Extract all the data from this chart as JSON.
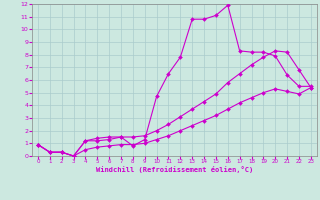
{
  "background_color": "#cce8e0",
  "grid_color": "#aacccc",
  "line_color": "#cc00cc",
  "xlabel": "Windchill (Refroidissement éolien,°C)",
  "xlim": [
    -0.5,
    23.5
  ],
  "ylim": [
    0,
    12
  ],
  "xticks": [
    0,
    1,
    2,
    3,
    4,
    5,
    6,
    7,
    8,
    9,
    10,
    11,
    12,
    13,
    14,
    15,
    16,
    17,
    18,
    19,
    20,
    21,
    22,
    23
  ],
  "yticks": [
    0,
    1,
    2,
    3,
    4,
    5,
    6,
    7,
    8,
    9,
    10,
    11,
    12
  ],
  "series": [
    {
      "x": [
        0,
        1,
        2,
        3,
        4,
        5,
        6,
        7,
        8,
        9,
        10,
        11,
        12,
        13,
        14,
        15,
        16,
        17,
        18,
        19,
        20,
        21,
        22,
        23
      ],
      "y": [
        0.9,
        0.3,
        0.3,
        0.0,
        1.2,
        1.2,
        1.3,
        1.5,
        0.8,
        1.3,
        4.7,
        6.5,
        7.8,
        10.8,
        10.8,
        11.1,
        11.9,
        8.3,
        8.2,
        8.2,
        7.9,
        6.4,
        5.5,
        5.5
      ]
    },
    {
      "x": [
        0,
        1,
        2,
        3,
        4,
        5,
        6,
        7,
        8,
        9,
        10,
        11,
        12,
        13,
        14,
        15,
        16,
        17,
        18,
        19,
        20,
        21,
        22,
        23
      ],
      "y": [
        0.9,
        0.3,
        0.3,
        0.0,
        1.2,
        1.4,
        1.5,
        1.5,
        1.5,
        1.6,
        2.0,
        2.5,
        3.1,
        3.7,
        4.3,
        4.9,
        5.8,
        6.5,
        7.2,
        7.8,
        8.3,
        8.2,
        6.8,
        5.4
      ]
    },
    {
      "x": [
        0,
        1,
        2,
        3,
        4,
        5,
        6,
        7,
        8,
        9,
        10,
        11,
        12,
        13,
        14,
        15,
        16,
        17,
        18,
        19,
        20,
        21,
        22,
        23
      ],
      "y": [
        0.9,
        0.3,
        0.3,
        0.0,
        0.5,
        0.7,
        0.8,
        0.9,
        0.9,
        1.0,
        1.3,
        1.6,
        2.0,
        2.4,
        2.8,
        3.2,
        3.7,
        4.2,
        4.6,
        5.0,
        5.3,
        5.1,
        4.9,
        5.4
      ]
    }
  ]
}
